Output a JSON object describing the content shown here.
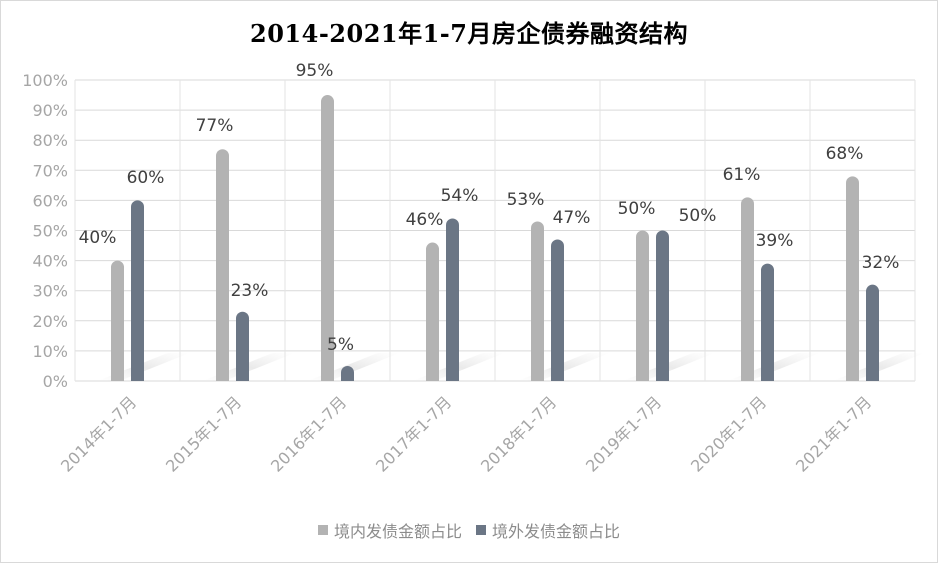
{
  "chart_data": {
    "type": "bar",
    "title": "2014-2021年1-7月房企债券融资结构",
    "categories": [
      "2014年1-7月",
      "2015年1-7月",
      "2016年1-7月",
      "2017年1-7月",
      "2018年1-7月",
      "2019年1-7月",
      "2020年1-7月",
      "2021年1-7月"
    ],
    "series": [
      {
        "name": "境内发债金额占比",
        "color": "#b3b3b3",
        "values": [
          40,
          77,
          95,
          46,
          53,
          50,
          61,
          68
        ],
        "labels": [
          "40%",
          "77%",
          "95%",
          "46%",
          "53%",
          "50%",
          "61%",
          "68%"
        ]
      },
      {
        "name": "境外发债金额占比",
        "color": "#6b7685",
        "values": [
          60,
          23,
          5,
          54,
          47,
          50,
          39,
          32
        ],
        "labels": [
          "60%",
          "23%",
          "5%",
          "54%",
          "47%",
          "50%",
          "39%",
          "32%"
        ]
      }
    ],
    "yticks": [
      "0%",
      "10%",
      "20%",
      "30%",
      "40%",
      "50%",
      "60%",
      "70%",
      "80%",
      "90%",
      "100%"
    ],
    "ylim": [
      0,
      100
    ],
    "grid": true,
    "legend_position": "bottom"
  }
}
